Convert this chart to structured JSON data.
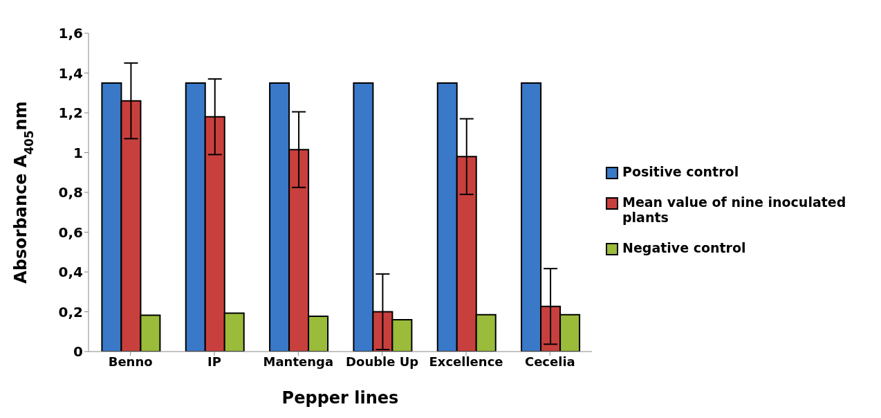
{
  "chart_data": {
    "type": "bar",
    "xlabel": "Pepper lines",
    "ylabel": "Absorbance A$_{405}$nm",
    "categories": [
      "Benno",
      "IP",
      "Mantenga",
      "Double Up",
      "Excellence",
      "Cecelia"
    ],
    "series": [
      {
        "name": "Positive control",
        "color": "#3a78c8",
        "values": [
          1.35,
          1.35,
          1.35,
          1.35,
          1.35,
          1.35
        ]
      },
      {
        "name": "Mean value of nine inoculated plants",
        "color": "#c8403d",
        "values": [
          1.26,
          1.18,
          1.015,
          0.2,
          0.98,
          0.227
        ],
        "errors": [
          0.19,
          0.19,
          0.19,
          0.19,
          0.19,
          0.19
        ]
      },
      {
        "name": "Negative control",
        "color": "#9bbb3a",
        "values": [
          0.183,
          0.193,
          0.177,
          0.16,
          0.185,
          0.185
        ]
      }
    ],
    "ylim": [
      0,
      1.6
    ],
    "yticks": [
      0,
      {
        "value": 0.2,
        "label": "0,2"
      },
      {
        "value": 0.4,
        "label": "0,4"
      },
      {
        "value": 0.6,
        "label": "0,6"
      },
      {
        "value": 0.8,
        "label": "0,8"
      },
      1,
      {
        "value": 1.2,
        "label": "1,2"
      },
      {
        "value": 1.4,
        "label": "1,4"
      },
      {
        "value": 1.6,
        "label": "1,6"
      }
    ],
    "grid": false,
    "legend": "right"
  }
}
